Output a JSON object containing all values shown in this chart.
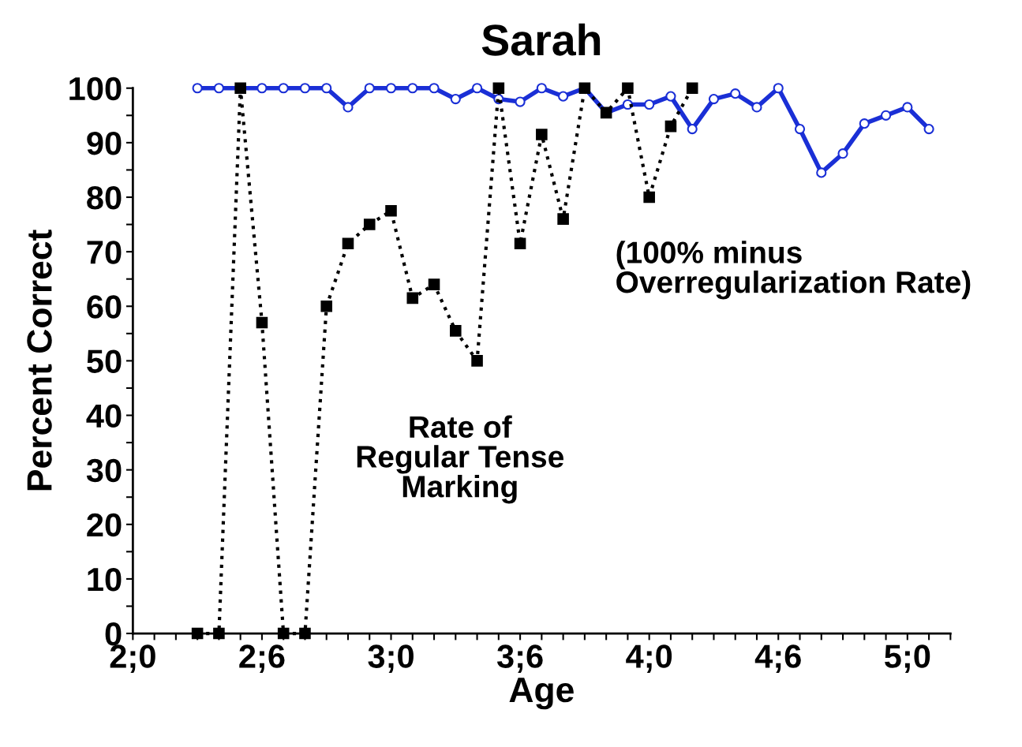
{
  "chart_data": {
    "type": "line",
    "title": "Sarah",
    "xlabel": "Age",
    "ylabel": "Percent Correct",
    "categories": [
      "2;0",
      null,
      null,
      null,
      null,
      null,
      "2;6",
      null,
      null,
      null,
      null,
      null,
      "3;0",
      null,
      null,
      null,
      null,
      null,
      "3;6",
      null,
      null,
      null,
      null,
      null,
      "4;0",
      null,
      null,
      null,
      null,
      null,
      "4;6",
      null,
      null,
      null,
      null,
      null,
      "5;0",
      null,
      null
    ],
    "ylim": [
      0,
      100
    ],
    "yticks": [
      0,
      {
        "value": 5,
        "label": null
      },
      10,
      {
        "value": 15,
        "label": null
      },
      20,
      {
        "value": 25,
        "label": null
      },
      30,
      {
        "value": 35,
        "label": null
      },
      40,
      {
        "value": 45,
        "label": null
      },
      50,
      {
        "value": 55,
        "label": null
      },
      60,
      {
        "value": 65,
        "label": null
      },
      70,
      {
        "value": 75,
        "label": null
      },
      80,
      {
        "value": 85,
        "label": null
      },
      90,
      {
        "value": 95,
        "label": null
      },
      100
    ],
    "grid": false,
    "legend": false,
    "annotations": [
      "Rate of\nRegular Tense\nMarking",
      "(100% minus\nOverregularization Rate)"
    ],
    "series": [
      {
        "color": "#1a2fd6",
        "marker": "circle",
        "line_style": "solid",
        "values": [
          null,
          null,
          null,
          100,
          100,
          100,
          100,
          100,
          100,
          100,
          96.5,
          100,
          100,
          100,
          100,
          98,
          100,
          98,
          97.5,
          100,
          98.5,
          100,
          95.5,
          97,
          97,
          98.5,
          92.5,
          98,
          99,
          96.5,
          100,
          92.5,
          84.5,
          88,
          93.5,
          95,
          96.5,
          92.5,
          null
        ]
      },
      {
        "color": "#000000",
        "marker": "square",
        "line_style": "dotted",
        "values": [
          null,
          null,
          null,
          0,
          0,
          100,
          57,
          0,
          0,
          60,
          71.5,
          75,
          77.5,
          61.5,
          64,
          55.5,
          50,
          100,
          71.5,
          91.5,
          76,
          100,
          95.5,
          100,
          80,
          93,
          100,
          null,
          null,
          null,
          null,
          null,
          null,
          null,
          null,
          null,
          null,
          null,
          null
        ]
      }
    ]
  }
}
